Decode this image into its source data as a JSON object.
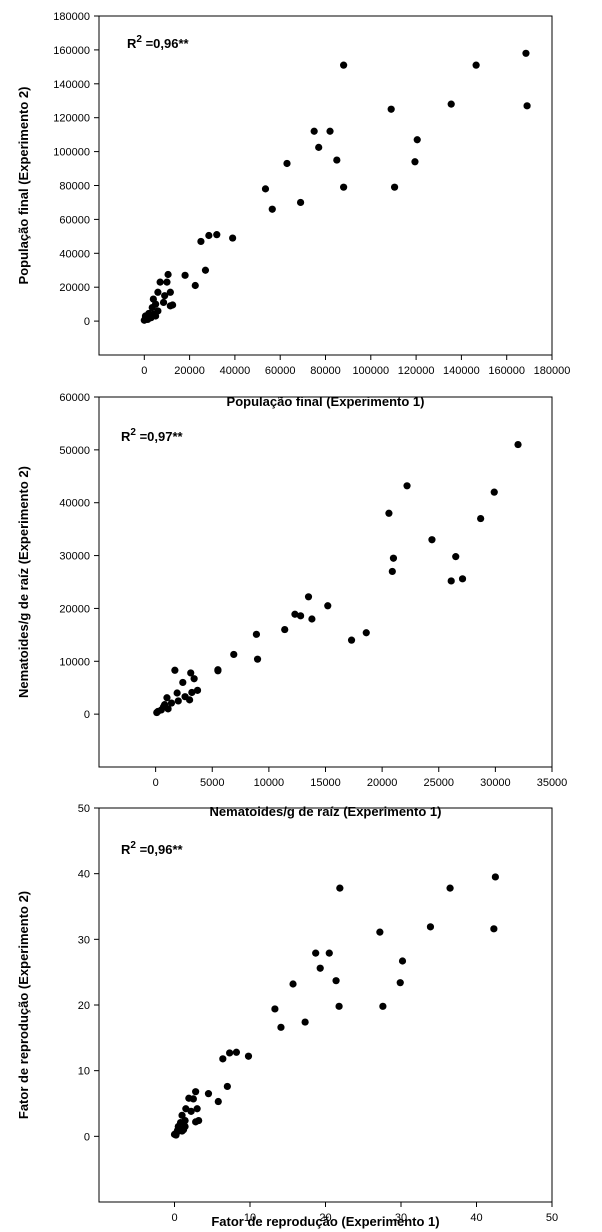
{
  "chart_data": [
    {
      "type": "scatter",
      "xlabel": "População final (Experimento 1)",
      "ylabel": "População final (Experimento 2)",
      "annotation": {
        "base": "R",
        "sup": "2",
        "rest": " =0,96**"
      },
      "xlim": [
        -20000,
        180000
      ],
      "ylim": [
        -20000,
        180000
      ],
      "xticks": [
        0,
        20000,
        40000,
        60000,
        80000,
        100000,
        120000,
        140000,
        160000,
        180000
      ],
      "yticks": [
        0,
        20000,
        40000,
        60000,
        80000,
        100000,
        120000,
        140000,
        160000,
        180000
      ],
      "grid": false,
      "marker_color": "#000000",
      "points": [
        [
          168500,
          158000
        ],
        [
          146500,
          151000
        ],
        [
          88000,
          151000
        ],
        [
          169000,
          127000
        ],
        [
          135500,
          128000
        ],
        [
          109000,
          125000
        ],
        [
          75000,
          112000
        ],
        [
          82000,
          112000
        ],
        [
          120500,
          107000
        ],
        [
          77000,
          102500
        ],
        [
          85000,
          95000
        ],
        [
          63000,
          93000
        ],
        [
          119500,
          94000
        ],
        [
          53500,
          78000
        ],
        [
          88000,
          79000
        ],
        [
          110500,
          79000
        ],
        [
          69000,
          70000
        ],
        [
          56500,
          66000
        ],
        [
          32000,
          51000
        ],
        [
          28500,
          50500
        ],
        [
          39000,
          49000
        ],
        [
          25000,
          47000
        ],
        [
          27000,
          30000
        ],
        [
          18000,
          27000
        ],
        [
          10500,
          27500
        ],
        [
          7000,
          23000
        ],
        [
          10000,
          23000
        ],
        [
          22500,
          21000
        ],
        [
          4000,
          13000
        ],
        [
          6000,
          17000
        ],
        [
          9000,
          15000
        ],
        [
          11500,
          17000
        ],
        [
          11500,
          9000
        ],
        [
          8500,
          11000
        ],
        [
          12500,
          9500
        ],
        [
          5000,
          10000
        ],
        [
          3500,
          8000
        ],
        [
          6000,
          6000
        ],
        [
          2000,
          4500
        ],
        [
          4000,
          4000
        ],
        [
          2500,
          3000
        ],
        [
          5000,
          3000
        ],
        [
          1000,
          2500
        ],
        [
          500,
          1500
        ],
        [
          1500,
          1000
        ],
        [
          0,
          500
        ],
        [
          500,
          3000
        ],
        [
          3000,
          2000
        ]
      ]
    },
    {
      "type": "scatter",
      "xlabel": "Nematoides/g de raíz (Experimento 1)",
      "ylabel": "Nematoides/g de raíz (Experimento 2)",
      "annotation": {
        "base": "R",
        "sup": "2",
        "rest": " =0,97**"
      },
      "xlim": [
        -5000,
        35000
      ],
      "ylim": [
        -10000,
        60000
      ],
      "xticks": [
        0,
        5000,
        10000,
        15000,
        20000,
        25000,
        30000,
        35000
      ],
      "xtick_labels": [
        "0",
        "5000",
        "10000",
        "15000",
        "20000",
        "25000",
        "30000",
        "35000"
      ],
      "yticks": [
        0,
        10000,
        20000,
        30000,
        40000,
        50000,
        60000
      ],
      "grid": false,
      "marker_color": "#000000",
      "points": [
        [
          32000,
          51000
        ],
        [
          22200,
          43200
        ],
        [
          29900,
          42000
        ],
        [
          20600,
          38000
        ],
        [
          28700,
          37000
        ],
        [
          24400,
          33000
        ],
        [
          21000,
          29500
        ],
        [
          26500,
          29800
        ],
        [
          20900,
          27000
        ],
        [
          26100,
          25200
        ],
        [
          27100,
          25600
        ],
        [
          13500,
          22200
        ],
        [
          15200,
          20500
        ],
        [
          12300,
          18900
        ],
        [
          12800,
          18600
        ],
        [
          13800,
          18000
        ],
        [
          11400,
          16000
        ],
        [
          18600,
          15400
        ],
        [
          8900,
          15100
        ],
        [
          17300,
          14000
        ],
        [
          6900,
          11300
        ],
        [
          9000,
          10400
        ],
        [
          1700,
          8300
        ],
        [
          5500,
          8200
        ],
        [
          5500,
          8400
        ],
        [
          3100,
          7800
        ],
        [
          3400,
          6700
        ],
        [
          2400,
          6000
        ],
        [
          3700,
          4500
        ],
        [
          1900,
          4000
        ],
        [
          3200,
          4100
        ],
        [
          2600,
          3300
        ],
        [
          1000,
          3100
        ],
        [
          2000,
          2500
        ],
        [
          1400,
          2100
        ],
        [
          3000,
          2700
        ],
        [
          700,
          1400
        ],
        [
          1100,
          1000
        ],
        [
          500,
          800
        ],
        [
          200,
          500
        ],
        [
          100,
          300
        ],
        [
          800,
          1800
        ]
      ]
    },
    {
      "type": "scatter",
      "xlabel": "Fator de reprodução (Experimento 1)",
      "ylabel": "Fator de reprodução (Experimento 2)",
      "annotation": {
        "base": "R",
        "sup": "2",
        "rest": " =0,96**"
      },
      "xlim": [
        -10,
        50
      ],
      "ylim": [
        -10,
        50
      ],
      "xticks": [
        0,
        10,
        20,
        30,
        40,
        50
      ],
      "yticks": [
        0,
        10,
        20,
        30,
        40,
        50
      ],
      "grid": false,
      "marker_color": "#000000",
      "points": [
        [
          42.5,
          39.5
        ],
        [
          21.9,
          37.8
        ],
        [
          36.5,
          37.8
        ],
        [
          33.9,
          31.9
        ],
        [
          42.3,
          31.6
        ],
        [
          27.2,
          31.1
        ],
        [
          18.7,
          27.9
        ],
        [
          20.5,
          27.9
        ],
        [
          30.2,
          26.7
        ],
        [
          19.3,
          25.6
        ],
        [
          21.4,
          23.7
        ],
        [
          15.7,
          23.2
        ],
        [
          29.9,
          23.4
        ],
        [
          13.3,
          19.4
        ],
        [
          21.8,
          19.8
        ],
        [
          27.6,
          19.8
        ],
        [
          17.3,
          17.4
        ],
        [
          14.1,
          16.6
        ],
        [
          8.2,
          12.8
        ],
        [
          7.3,
          12.7
        ],
        [
          9.8,
          12.2
        ],
        [
          6.4,
          11.8
        ],
        [
          7.0,
          7.6
        ],
        [
          5.8,
          5.3
        ],
        [
          2.8,
          6.8
        ],
        [
          1.9,
          5.8
        ],
        [
          2.5,
          5.7
        ],
        [
          4.5,
          6.5
        ],
        [
          1.0,
          3.2
        ],
        [
          1.5,
          4.2
        ],
        [
          2.2,
          3.8
        ],
        [
          3.0,
          4.2
        ],
        [
          3.2,
          2.4
        ],
        [
          2.8,
          2.2
        ],
        [
          1.4,
          2.4
        ],
        [
          0.8,
          2.1
        ],
        [
          1.4,
          1.5
        ],
        [
          0.6,
          1.2
        ],
        [
          1.0,
          0.8
        ],
        [
          0.3,
          0.6
        ],
        [
          0.0,
          0.3
        ],
        [
          0.4,
          0.9
        ],
        [
          0.5,
          1.5
        ],
        [
          1.2,
          1.0
        ],
        [
          0.2,
          0.2
        ]
      ]
    }
  ]
}
